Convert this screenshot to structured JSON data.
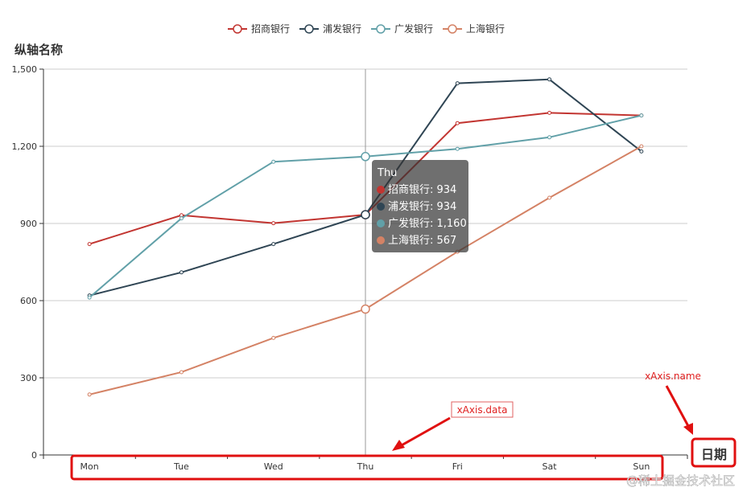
{
  "chart_data": {
    "type": "line",
    "categories": [
      "Mon",
      "Tue",
      "Wed",
      "Thu",
      "Fri",
      "Sat",
      "Sun"
    ],
    "series": [
      {
        "name": "招商银行",
        "color": "#c23531",
        "values": [
          820,
          932,
          901,
          934,
          1290,
          1330,
          1320
        ]
      },
      {
        "name": "浦发银行",
        "color": "#2f4554",
        "values": [
          620,
          710,
          820,
          934,
          1445,
          1460,
          1180
        ]
      },
      {
        "name": "广发银行",
        "color": "#61a0a8",
        "values": [
          612,
          920,
          1140,
          1160,
          1190,
          1235,
          1320
        ]
      },
      {
        "name": "上海银行",
        "color": "#d48265",
        "values": [
          235,
          322,
          455,
          567,
          790,
          1000,
          1200
        ]
      }
    ],
    "ylabel": "纵轴名称",
    "xlabel": "日期",
    "ylim": [
      0,
      1500
    ],
    "yticks": [
      "0",
      "300",
      "600",
      "900",
      "1,200",
      "1,500"
    ],
    "grid": true,
    "legend": "top-center",
    "tooltip": {
      "title": "Thu",
      "category_index": 3,
      "entries": [
        {
          "label": "招商银行: 934",
          "color": "#c23531"
        },
        {
          "label": "浦发银行: 934",
          "color": "#2f4554"
        },
        {
          "label": "广发银行: 1,160",
          "color": "#61a0a8"
        },
        {
          "label": "上海银行: 567",
          "color": "#d48265"
        }
      ]
    },
    "annotations": [
      {
        "text": "xAxis.data",
        "target": "x-axis-tick-labels"
      },
      {
        "text": "xAxis.name",
        "target": "x-axis-name"
      }
    ]
  },
  "watermark": "@稀土掘金技术社区"
}
